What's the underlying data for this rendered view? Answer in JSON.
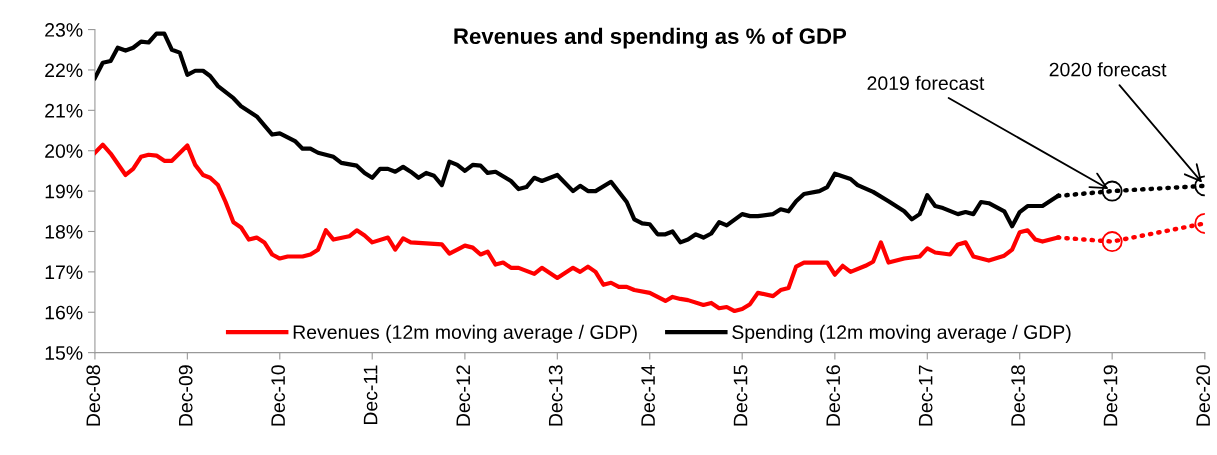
{
  "chart_data": {
    "type": "line",
    "title": "Revenues and spending as % of GDP",
    "ylim": [
      15,
      23
    ],
    "yticks": [
      {
        "value": 15,
        "label": "15%"
      },
      {
        "value": 16,
        "label": "16%"
      },
      {
        "value": 17,
        "label": "17%"
      },
      {
        "value": 18,
        "label": "18%"
      },
      {
        "value": 19,
        "label": "19%"
      },
      {
        "value": 20,
        "label": "20%"
      },
      {
        "value": 21,
        "label": "21%"
      },
      {
        "value": 22,
        "label": "22%"
      },
      {
        "value": 23,
        "label": "23%"
      }
    ],
    "xlim": [
      "2008-12",
      "2020-12"
    ],
    "xticks": [
      {
        "value": "2008-12",
        "label": "Dec-08"
      },
      {
        "value": "2009-12",
        "label": "Dec-09"
      },
      {
        "value": "2010-12",
        "label": "Dec-10"
      },
      {
        "value": "2011-12",
        "label": "Dec-11"
      },
      {
        "value": "2012-12",
        "label": "Dec-12"
      },
      {
        "value": "2013-12",
        "label": "Dec-13"
      },
      {
        "value": "2014-12",
        "label": "Dec-14"
      },
      {
        "value": "2015-12",
        "label": "Dec-15"
      },
      {
        "value": "2016-12",
        "label": "Dec-16"
      },
      {
        "value": "2017-12",
        "label": "Dec-17"
      },
      {
        "value": "2018-12",
        "label": "Dec-18"
      },
      {
        "value": "2019-12",
        "label": "Dec-19"
      },
      {
        "value": "2020-12",
        "label": "Dec-20"
      }
    ],
    "grid": false,
    "legend": "bottom",
    "marker": "none",
    "line_style": "solid",
    "series": [
      {
        "name": "Revenues (12m moving average / GDP)",
        "color": "#ff0000",
        "x": [
          "2008-12",
          "2009-01",
          "2009-02",
          "2009-04",
          "2009-05",
          "2009-06",
          "2009-07",
          "2009-08",
          "2009-09",
          "2009-10",
          "2009-12",
          "2010-01",
          "2010-02",
          "2010-03",
          "2010-04",
          "2010-05",
          "2010-06",
          "2010-07",
          "2010-08",
          "2010-09",
          "2010-10",
          "2010-11",
          "2010-12",
          "2011-01",
          "2011-03",
          "2011-04",
          "2011-05",
          "2011-06",
          "2011-07",
          "2011-09",
          "2011-10",
          "2011-11",
          "2011-12",
          "2012-02",
          "2012-03",
          "2012-04",
          "2012-05",
          "2012-09",
          "2012-10",
          "2012-11",
          "2012-12",
          "2013-01",
          "2013-02",
          "2013-03",
          "2013-04",
          "2013-05",
          "2013-06",
          "2013-07",
          "2013-09",
          "2013-10",
          "2013-12",
          "2014-02",
          "2014-03",
          "2014-04",
          "2014-05",
          "2014-06",
          "2014-07",
          "2014-08",
          "2014-09",
          "2014-10",
          "2014-12",
          "2015-02",
          "2015-03",
          "2015-04",
          "2015-05",
          "2015-07",
          "2015-08",
          "2015-09",
          "2015-10",
          "2015-11",
          "2015-12",
          "2016-01",
          "2016-02",
          "2016-04",
          "2016-05",
          "2016-06",
          "2016-07",
          "2016-08",
          "2016-11",
          "2016-12",
          "2017-01",
          "2017-02",
          "2017-04",
          "2017-05",
          "2017-06",
          "2017-07",
          "2017-09",
          "2017-11",
          "2017-12",
          "2018-01",
          "2018-03",
          "2018-04",
          "2018-05",
          "2018-06",
          "2018-08",
          "2018-10",
          "2018-11",
          "2018-12",
          "2019-01",
          "2019-02",
          "2019-03",
          "2019-05"
        ],
        "values": [
          19.95,
          20.15,
          19.93,
          19.4,
          19.55,
          19.85,
          19.9,
          19.88,
          19.75,
          19.75,
          20.13,
          19.65,
          19.4,
          19.33,
          19.15,
          18.73,
          18.23,
          18.1,
          17.8,
          17.85,
          17.73,
          17.43,
          17.33,
          17.38,
          17.38,
          17.43,
          17.55,
          18.03,
          17.8,
          17.88,
          18.03,
          17.9,
          17.73,
          17.85,
          17.55,
          17.83,
          17.73,
          17.68,
          17.45,
          17.55,
          17.65,
          17.6,
          17.43,
          17.5,
          17.18,
          17.23,
          17.1,
          17.1,
          16.95,
          17.1,
          16.85,
          17.1,
          17.0,
          17.13,
          17.0,
          16.68,
          16.73,
          16.63,
          16.63,
          16.55,
          16.48,
          16.28,
          16.38,
          16.33,
          16.3,
          16.18,
          16.23,
          16.1,
          16.13,
          16.03,
          16.08,
          16.2,
          16.48,
          16.4,
          16.55,
          16.6,
          17.13,
          17.23,
          17.23,
          16.93,
          17.15,
          17.0,
          17.15,
          17.25,
          17.73,
          17.23,
          17.33,
          17.38,
          17.58,
          17.48,
          17.43,
          17.68,
          17.73,
          17.38,
          17.28,
          17.4,
          17.55,
          17.98,
          18.03,
          17.8,
          17.75,
          17.85
        ]
      },
      {
        "name": "Spending (12m moving average / GDP)",
        "color": "#000000",
        "x": [
          "2008-12",
          "2009-01",
          "2009-02",
          "2009-03",
          "2009-04",
          "2009-05",
          "2009-06",
          "2009-07",
          "2009-08",
          "2009-09",
          "2009-10",
          "2009-11",
          "2009-12",
          "2010-01",
          "2010-02",
          "2010-03",
          "2010-04",
          "2010-06",
          "2010-07",
          "2010-09",
          "2010-10",
          "2010-11",
          "2010-12",
          "2011-02",
          "2011-03",
          "2011-04",
          "2011-05",
          "2011-07",
          "2011-08",
          "2011-10",
          "2011-11",
          "2011-12",
          "2012-01",
          "2012-02",
          "2012-03",
          "2012-04",
          "2012-05",
          "2012-06",
          "2012-07",
          "2012-08",
          "2012-09",
          "2012-10",
          "2012-11",
          "2012-12",
          "2013-01",
          "2013-02",
          "2013-03",
          "2013-04",
          "2013-06",
          "2013-07",
          "2013-08",
          "2013-09",
          "2013-10",
          "2013-12",
          "2014-02",
          "2014-03",
          "2014-04",
          "2014-05",
          "2014-07",
          "2014-09",
          "2014-10",
          "2014-11",
          "2014-12",
          "2015-01",
          "2015-02",
          "2015-03",
          "2015-04",
          "2015-05",
          "2015-06",
          "2015-07",
          "2015-08",
          "2015-09",
          "2015-10",
          "2015-12",
          "2016-01",
          "2016-02",
          "2016-04",
          "2016-05",
          "2016-06",
          "2016-07",
          "2016-08",
          "2016-10",
          "2016-11",
          "2016-12",
          "2017-02",
          "2017-03",
          "2017-05",
          "2017-07",
          "2017-09",
          "2017-10",
          "2017-11",
          "2017-12",
          "2018-01",
          "2018-02",
          "2018-04",
          "2018-05",
          "2018-06",
          "2018-07",
          "2018-08",
          "2018-10",
          "2018-11",
          "2018-12",
          "2019-01",
          "2019-03",
          "2019-05"
        ],
        "values": [
          21.8,
          22.18,
          22.22,
          22.55,
          22.48,
          22.55,
          22.7,
          22.68,
          22.9,
          22.9,
          22.5,
          22.43,
          21.88,
          21.98,
          21.98,
          21.85,
          21.6,
          21.3,
          21.1,
          20.85,
          20.63,
          20.4,
          20.43,
          20.23,
          20.05,
          20.05,
          19.95,
          19.85,
          19.7,
          19.63,
          19.45,
          19.33,
          19.55,
          19.55,
          19.48,
          19.6,
          19.48,
          19.33,
          19.45,
          19.38,
          19.15,
          19.73,
          19.65,
          19.5,
          19.65,
          19.63,
          19.45,
          19.48,
          19.25,
          19.05,
          19.1,
          19.33,
          19.25,
          19.4,
          19.0,
          19.13,
          19.0,
          19.0,
          19.23,
          18.73,
          18.3,
          18.2,
          18.18,
          17.93,
          17.93,
          18.0,
          17.73,
          17.8,
          17.93,
          17.85,
          17.95,
          18.23,
          18.15,
          18.43,
          18.38,
          18.38,
          18.43,
          18.55,
          18.5,
          18.75,
          18.93,
          19.0,
          19.1,
          19.43,
          19.3,
          19.15,
          18.98,
          18.75,
          18.5,
          18.3,
          18.43,
          18.9,
          18.63,
          18.58,
          18.43,
          18.48,
          18.43,
          18.73,
          18.7,
          18.5,
          18.13,
          18.48,
          18.63,
          18.63,
          18.88
        ]
      },
      {
        "color": "#ff0000",
        "line_style": "dotted",
        "x": [
          "2019-05",
          "2019-12",
          "2020-12"
        ],
        "values": [
          17.85,
          17.75,
          18.2
        ]
      },
      {
        "color": "#000000",
        "line_style": "dotted",
        "x": [
          "2019-05",
          "2019-12",
          "2020-12"
        ],
        "values": [
          18.88,
          19.0,
          19.13
        ]
      },
      {
        "type": "scatter",
        "marker": "circle",
        "color": "#ff0000",
        "x": [
          "2019-12",
          "2020-12"
        ],
        "values": [
          17.75,
          18.2
        ]
      },
      {
        "type": "scatter",
        "marker": "circle",
        "color": "#000000",
        "x": [
          "2019-12",
          "2020-12"
        ],
        "values": [
          19.0,
          19.13
        ]
      }
    ],
    "annotations": [
      {
        "text": "2019 forecast",
        "x": "2019-12",
        "y": 19.0
      },
      {
        "text": "2020 forecast",
        "x": "2020-12",
        "y": 19.13
      }
    ]
  }
}
